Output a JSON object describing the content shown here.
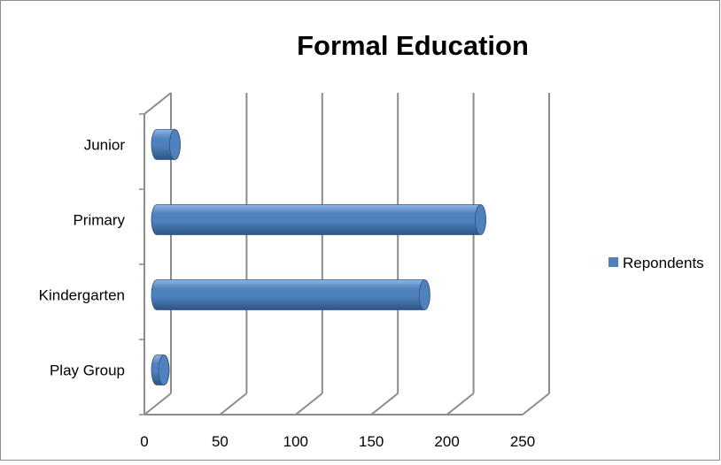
{
  "chart_data": {
    "type": "bar",
    "orientation": "horizontal",
    "style": "3d-cylinder",
    "title": "Formal Education",
    "xlabel": "",
    "ylabel": "",
    "categories": [
      "Junior",
      "Primary",
      "Kindergarten",
      "Play Group"
    ],
    "series": [
      {
        "name": "Repondents",
        "values": [
          12,
          214,
          177,
          4
        ],
        "color": "#4F81BD"
      }
    ],
    "xlim": [
      0,
      250
    ],
    "x_ticks": [
      "0",
      "50",
      "100",
      "150",
      "200",
      "250"
    ],
    "grid": true,
    "legend_position": "right"
  },
  "colors": {
    "bar_fill": "#4F81BD",
    "bar_highlight": "#8FB5E6",
    "bar_shadow": "#2C5486",
    "gridline": "#8C8C8C",
    "frame": "#8C8C8C"
  }
}
